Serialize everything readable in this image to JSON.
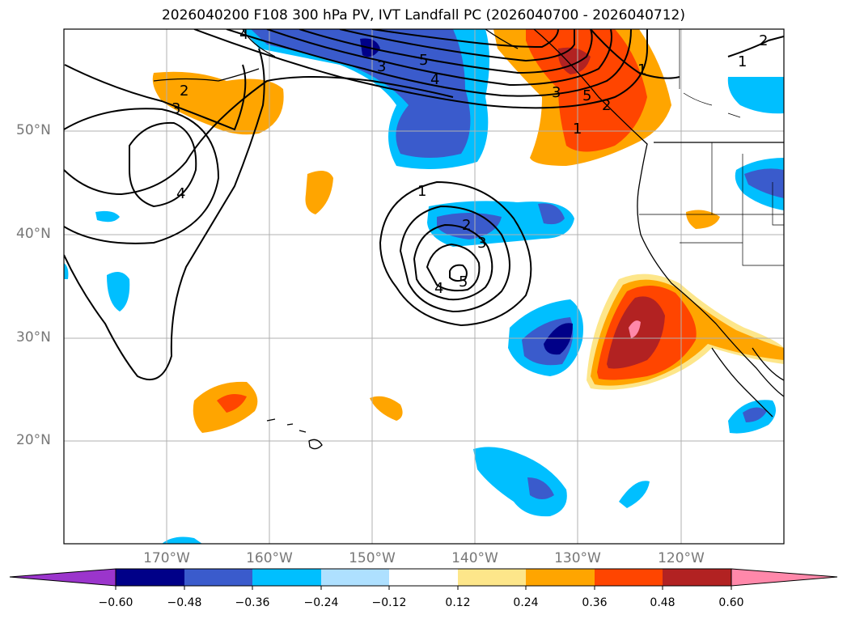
{
  "title": "2026040200 F108 300 hPa PV, IVT Landfall PC (2026040700 - 2026040712)",
  "map": {
    "lat_labels": [
      "50°N",
      "40°N",
      "30°N",
      "20°N"
    ],
    "lon_labels": [
      "170°W",
      "160°W",
      "150°W",
      "140°W",
      "130°W",
      "120°W"
    ],
    "contour_labels": [
      {
        "text": "2"
      },
      {
        "text": "3"
      },
      {
        "text": "4"
      },
      {
        "text": "5"
      },
      {
        "text": "4"
      },
      {
        "text": "3"
      },
      {
        "text": "1"
      },
      {
        "text": "1"
      },
      {
        "text": "2"
      },
      {
        "text": "3"
      },
      {
        "text": "4"
      },
      {
        "text": "5"
      },
      {
        "text": "1"
      },
      {
        "text": "2"
      },
      {
        "text": "1"
      },
      {
        "text": "2"
      },
      {
        "text": "3"
      },
      {
        "text": "4"
      },
      {
        "text": "5"
      }
    ]
  },
  "colorbar": {
    "ticks": [
      "−0.60",
      "−0.48",
      "−0.36",
      "−0.24",
      "−0.12",
      "0.12",
      "0.24",
      "0.36",
      "0.48",
      "0.60"
    ],
    "colors": [
      "#9b35cc",
      "#000088",
      "#3a5bcc",
      "#00bfff",
      "#aee0ff",
      "#ffffff",
      "#fde68a",
      "#ffa500",
      "#ff4500",
      "#b22222",
      "#ff88aa"
    ]
  }
}
